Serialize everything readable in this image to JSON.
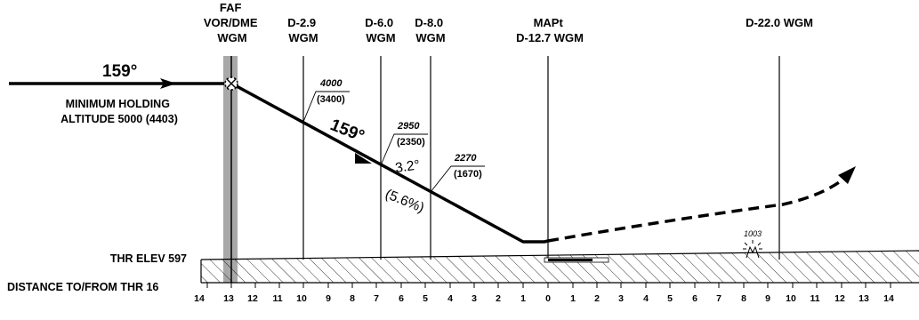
{
  "fixes": {
    "faf": {
      "line1": "FAF",
      "line2": "VOR/DME",
      "line3": "WGM"
    },
    "d2_9": {
      "line1": "D-2.9",
      "line2": "WGM"
    },
    "d6_0": {
      "line1": "D-6.0",
      "line2": "WGM"
    },
    "d8_0": {
      "line1": "D-8.0",
      "line2": "WGM"
    },
    "mapt": {
      "line1": "MAPt",
      "line2": "D-12.7 WGM"
    },
    "d22_0": {
      "line1": "D-22.0 WGM"
    }
  },
  "inbound_course": "159°",
  "descent_course": "159°",
  "holding": {
    "line1": "MINIMUM HOLDING",
    "line2": "ALTITUDE 5000 (4403)"
  },
  "altitudes": {
    "d2_9": {
      "alt": "4000",
      "height": "(3400)"
    },
    "d6_0": {
      "alt": "2950",
      "height": "(2350)"
    },
    "d8_0": {
      "alt": "2270",
      "height": "(1670)"
    }
  },
  "glide_path": {
    "angle": "3.2°",
    "gradient": "(5.6%)"
  },
  "obstacle": "1003",
  "threshold_elevation": "THR ELEV 597",
  "distance_caption": "DISTANCE TO/FROM THR 16",
  "distance_ticks": [
    "14",
    "13",
    "12",
    "11",
    "10",
    "9",
    "8",
    "7",
    "6",
    "5",
    "4",
    "3",
    "2",
    "1",
    "0",
    "1",
    "2",
    "3",
    "4",
    "5",
    "6",
    "7",
    "8",
    "9",
    "10",
    "11",
    "12",
    "13",
    "14"
  ]
}
